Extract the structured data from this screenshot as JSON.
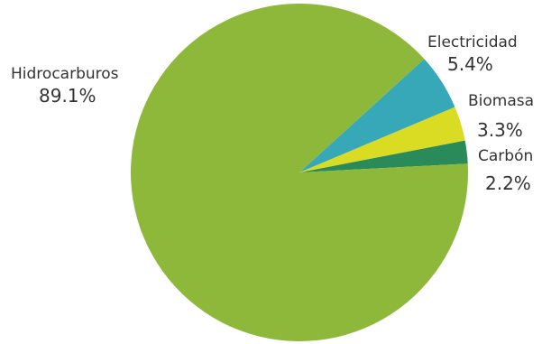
{
  "chart_data": {
    "type": "pie",
    "title": "",
    "slices": [
      {
        "label": "Hidrocarburos",
        "value": 89.1,
        "display": "89.1%",
        "color": "#8DB83A"
      },
      {
        "label": "Electricidad",
        "value": 5.4,
        "display": "5.4%",
        "color": "#37A8B8"
      },
      {
        "label": "Biomasa",
        "value": 3.3,
        "display": "3.3%",
        "color": "#D9DC23"
      },
      {
        "label": "Carbón",
        "value": 2.2,
        "display": "2.2%",
        "color": "#2A8A5A"
      }
    ]
  }
}
